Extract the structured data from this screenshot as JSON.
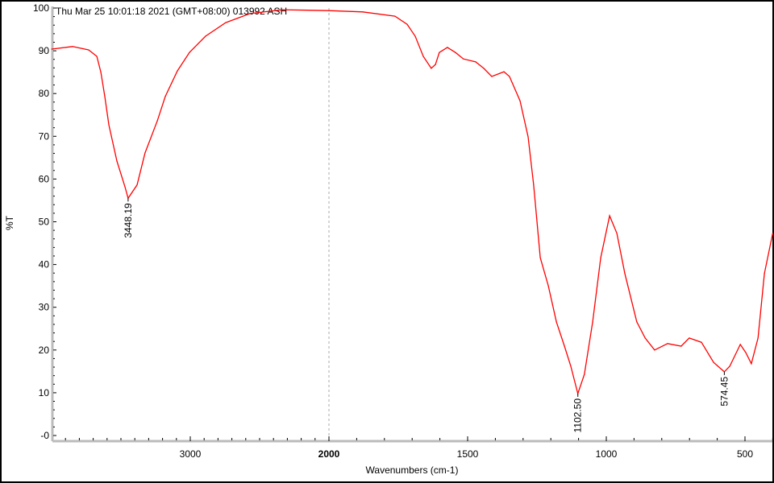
{
  "header_text": "Thu Mar 25 10:01:18 2021 (GMT+08:00)  013992  ASH",
  "chart_data": {
    "type": "line",
    "title": "",
    "xlabel": "Wavenumbers (cm-1)",
    "ylabel": "%T",
    "xlim": [
      4000,
      400
    ],
    "ylim": [
      -2,
      101
    ],
    "x_axis_note": "scale expanded 2x below 2000",
    "x_ticks": [
      {
        "value": 3000,
        "label": "3000"
      },
      {
        "value": 2000,
        "label": "2000"
      },
      {
        "value": 1500,
        "label": "1500"
      },
      {
        "value": 1000,
        "label": "1000"
      },
      {
        "value": 500,
        "label": "500"
      }
    ],
    "y_ticks": [
      {
        "value": 100,
        "label": "100"
      },
      {
        "value": 90,
        "label": "90"
      },
      {
        "value": 80,
        "label": "80"
      },
      {
        "value": 70,
        "label": "70"
      },
      {
        "value": 60,
        "label": "60"
      },
      {
        "value": 50,
        "label": "50"
      },
      {
        "value": 40,
        "label": "40"
      },
      {
        "value": 30,
        "label": "30"
      },
      {
        "value": 20,
        "label": "20"
      },
      {
        "value": 10,
        "label": "10"
      },
      {
        "value": 0,
        "label": "-0"
      }
    ],
    "grid": false,
    "reference_line_x": 2000,
    "line_color": "#ff0000",
    "series": [
      {
        "x": [
          4000,
          3849,
          3733,
          3674,
          3645,
          3616,
          3587,
          3529,
          3471,
          3448,
          3384,
          3326,
          3238,
          3180,
          3093,
          3006,
          2890,
          2744,
          2570,
          2337,
          2000,
          1878,
          1762,
          1718,
          1689,
          1660,
          1631,
          1616,
          1602,
          1573,
          1544,
          1515,
          1471,
          1442,
          1413,
          1369,
          1349,
          1311,
          1282,
          1262,
          1238,
          1209,
          1180,
          1151,
          1128,
          1102.5,
          1079,
          1049,
          1020,
          988,
          962,
          933,
          890,
          860,
          826,
          779,
          730,
          701,
          657,
          613,
          574.45,
          555,
          517,
          497,
          477,
          453,
          430,
          400
        ],
        "y": [
          90.4,
          91,
          90.2,
          88.7,
          85,
          79.3,
          72.7,
          64.2,
          58.2,
          55.5,
          58.6,
          66.1,
          73.6,
          79.3,
          85.3,
          89.6,
          93.4,
          96.6,
          98.7,
          99.6,
          99.4,
          99.1,
          98.1,
          96.2,
          93.4,
          88.7,
          85.9,
          86.8,
          89.6,
          90.8,
          89.6,
          88.1,
          87.4,
          85.9,
          84,
          85.1,
          84,
          78.3,
          69.9,
          58.6,
          41.6,
          35,
          26.6,
          20.9,
          16.2,
          9.8,
          14.3,
          26.6,
          41.6,
          51.4,
          47.3,
          37.9,
          26.6,
          22.8,
          20,
          21.5,
          20.9,
          22.8,
          21.8,
          17.1,
          14.9,
          16.2,
          21.3,
          19.4,
          16.8,
          22.8,
          37.9,
          47.3
        ]
      }
    ],
    "annotations": [
      {
        "x": 3448.19,
        "y": 55.5,
        "label": "3448.19"
      },
      {
        "x": 1102.5,
        "y": 9.8,
        "label": "1102.50"
      },
      {
        "x": 574.45,
        "y": 14.9,
        "label": "574.45"
      }
    ]
  }
}
